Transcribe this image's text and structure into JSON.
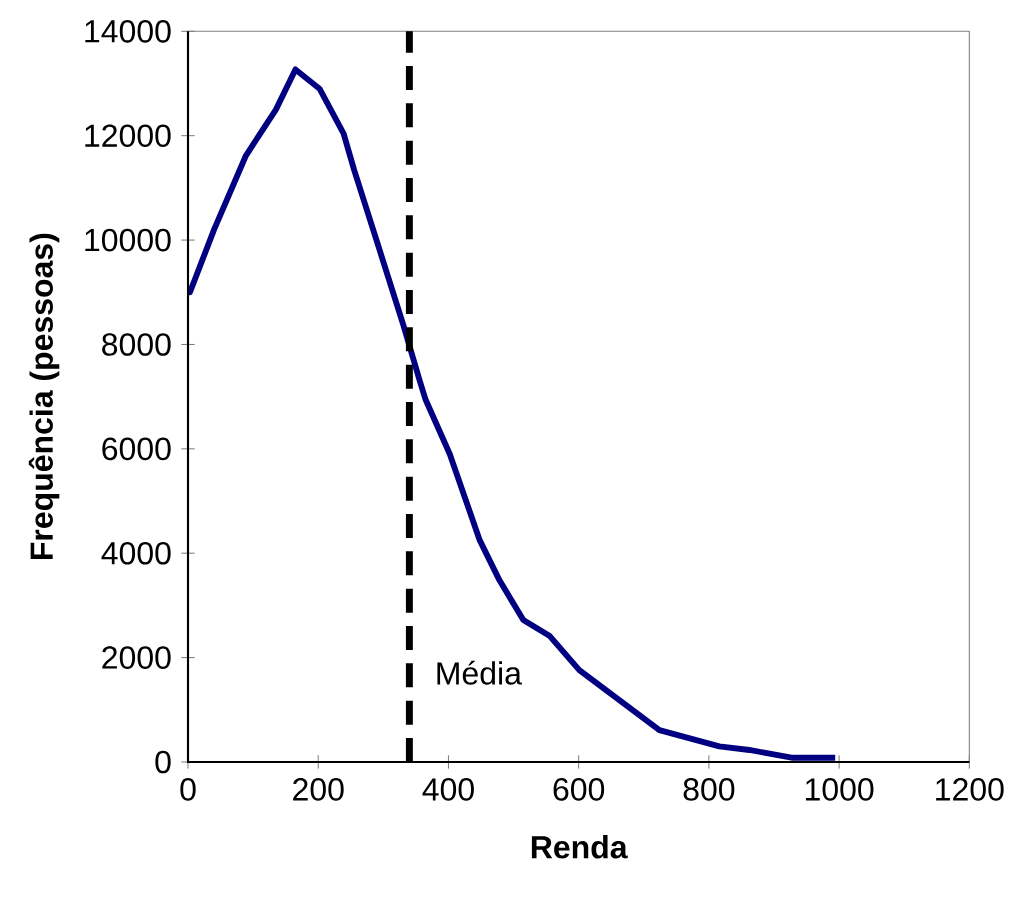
{
  "chart_data": {
    "type": "line",
    "xlabel": "Renda",
    "ylabel": "Frequência (pessoas)",
    "x": [
      0,
      3,
      40,
      89,
      135,
      165,
      202,
      239,
      255,
      294,
      331,
      356,
      365,
      402,
      448,
      478,
      515,
      555,
      601,
      724,
      816,
      862,
      929,
      994
    ],
    "series": [
      {
        "color": "#000080",
        "values": [
          9000,
          9000,
          10200,
          11620,
          12500,
          13270,
          12900,
          12040,
          11350,
          9820,
          8360,
          7300,
          6940,
          5900,
          4250,
          3490,
          2720,
          2420,
          1760,
          610,
          300,
          230,
          80,
          80
        ]
      }
    ],
    "xlim": [
      0,
      1200
    ],
    "xticks": [
      0,
      200,
      400,
      600,
      800,
      1000,
      1200
    ],
    "ylim": [
      0,
      14000
    ],
    "yticks": [
      0,
      2000,
      4000,
      6000,
      8000,
      10000,
      12000,
      14000
    ],
    "ref_lines": [
      {
        "axis": "x",
        "value": 340,
        "label": "Média",
        "color": "#000000",
        "line_style": "dashed"
      }
    ],
    "grid": false,
    "marker": "none",
    "line_style": "solid"
  }
}
